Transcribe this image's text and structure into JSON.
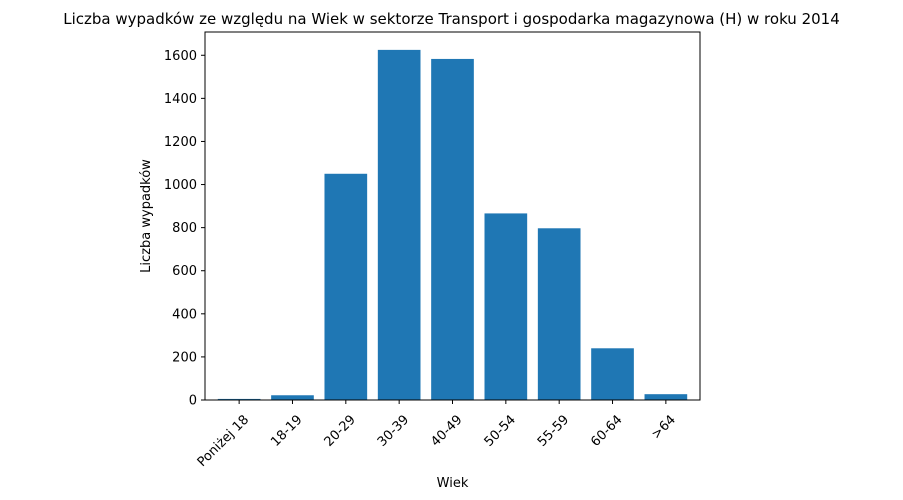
{
  "chart_data": {
    "type": "bar",
    "title": "Liczba wypadków ze względu na Wiek w sektorze Transport i gospodarka magazynowa  (H)   w roku 2014",
    "xlabel": "Wiek",
    "ylabel": "Liczba wypadków",
    "categories": [
      "Poniżej 18",
      "18-19",
      "20-29",
      "30-39",
      "40-49",
      "50-54",
      "55-59",
      "60-64",
      ">64"
    ],
    "values": [
      5,
      22,
      1050,
      1625,
      1583,
      866,
      797,
      240,
      27
    ],
    "ylim": [
      0,
      1708
    ],
    "yticks": [
      0,
      200,
      400,
      600,
      800,
      1000,
      1200,
      1400,
      1600
    ],
    "bar_color": "#1f77b4",
    "grid": false,
    "legend": "none"
  }
}
